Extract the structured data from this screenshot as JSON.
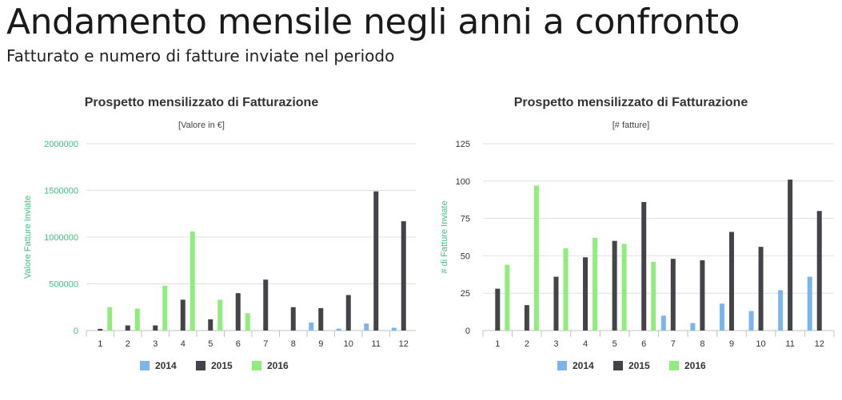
{
  "page": {
    "title": "Andamento mensile negli anni a confronto",
    "subtitle": "Fatturato e numero di fatture inviate nel periodo"
  },
  "colors": {
    "2014": "#7cb5ec",
    "2015": "#434348",
    "2016": "#90ed7d",
    "axis_label_green": "#40c080"
  },
  "chart_data": [
    {
      "type": "bar",
      "title": "Prospetto mensilizzato di Fatturazione",
      "subtitle": "[Valore in €]",
      "xlabel": "",
      "ylabel": "Valore Fatture Inviate",
      "ylim": [
        0,
        2000000
      ],
      "yticks": [
        "0",
        "500000",
        "1000000",
        "1500000",
        "2000000"
      ],
      "ytick_values": [
        0,
        500000,
        1000000,
        1500000,
        2000000
      ],
      "categories": [
        "1",
        "2",
        "3",
        "4",
        "5",
        "6",
        "7",
        "8",
        "9",
        "10",
        "11",
        "12"
      ],
      "grid": true,
      "legend_position": "bottom-center",
      "series": [
        {
          "name": "2014",
          "values": [
            0,
            0,
            0,
            0,
            0,
            0,
            0,
            0,
            85000,
            20000,
            75000,
            30000
          ]
        },
        {
          "name": "2015",
          "values": [
            18000,
            55000,
            55000,
            330000,
            120000,
            400000,
            545000,
            250000,
            240000,
            380000,
            1490000,
            1170000
          ]
        },
        {
          "name": "2016",
          "values": [
            250000,
            235000,
            480000,
            1060000,
            330000,
            185000,
            0,
            0,
            0,
            0,
            0,
            0
          ]
        }
      ]
    },
    {
      "type": "bar",
      "title": "Prospetto mensilizzato di Fatturazione",
      "subtitle": "[# fatture]",
      "xlabel": "",
      "ylabel": "# di Fatture Inviate",
      "ylim": [
        0,
        125
      ],
      "yticks": [
        "0",
        "25",
        "50",
        "75",
        "100",
        "125"
      ],
      "ytick_values": [
        0,
        25,
        50,
        75,
        100,
        125
      ],
      "categories": [
        "1",
        "2",
        "3",
        "4",
        "5",
        "6",
        "7",
        "8",
        "9",
        "10",
        "11",
        "12"
      ],
      "grid": true,
      "legend_position": "bottom-center",
      "series": [
        {
          "name": "2014",
          "values": [
            0,
            0,
            0,
            0,
            0,
            0,
            10,
            5,
            18,
            13,
            27,
            36
          ]
        },
        {
          "name": "2015",
          "values": [
            28,
            17,
            36,
            49,
            60,
            86,
            48,
            47,
            66,
            56,
            101,
            80
          ]
        },
        {
          "name": "2016",
          "values": [
            44,
            97,
            55,
            62,
            58,
            46,
            0,
            0,
            0,
            0,
            0,
            0
          ]
        }
      ]
    }
  ]
}
